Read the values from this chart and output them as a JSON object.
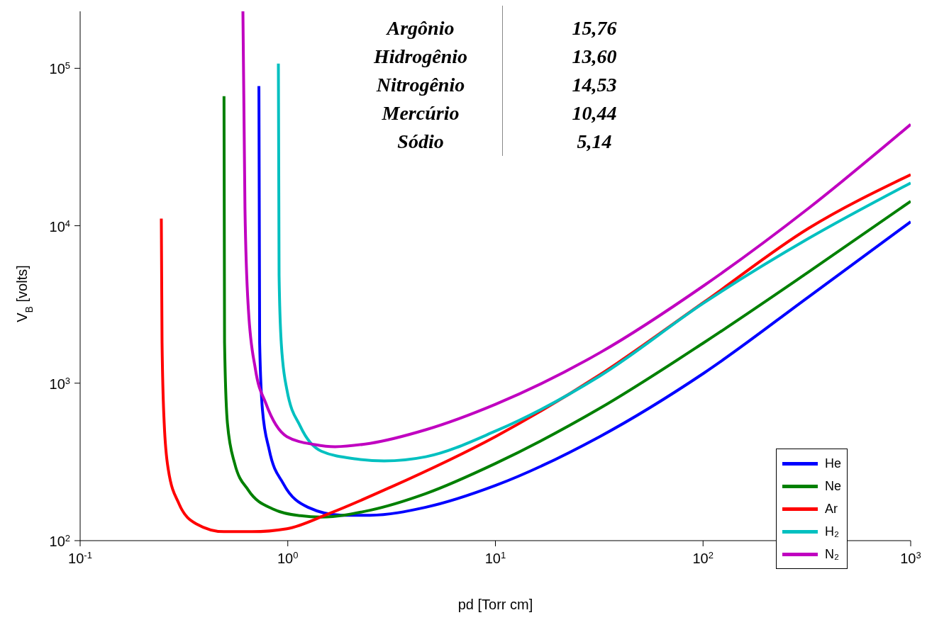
{
  "chart_data": {
    "type": "line",
    "xlabel": "pd [Torr cm]",
    "ylabel": "V$_{B}$ [volts]",
    "log": "xy",
    "xlim": [
      0.1,
      1000
    ],
    "xticks": [
      {
        "value": 0.1,
        "label": "10$^{-1}$"
      },
      {
        "value": 1,
        "label": "10$^{0}$"
      },
      {
        "value": 10,
        "label": "10$^{1}$"
      },
      {
        "value": 100,
        "label": "10$^{2}$"
      },
      {
        "value": 1000,
        "label": "10$^{3}$"
      }
    ],
    "ylim": [
      100,
      230000
    ],
    "yticks": [
      {
        "value": 100,
        "label": "10$^{2}$"
      },
      {
        "value": 1000,
        "label": "10$^{3}$"
      },
      {
        "value": 10000,
        "label": "10$^{4}$"
      },
      {
        "value": 100000,
        "label": "10$^{5}$"
      }
    ],
    "legend": "bottom right",
    "marker": "none",
    "line_style": "solid",
    "annotations": [
      "Argônio",
      "15,76",
      "Hidrogênio",
      "13,60",
      "Nitrogênio",
      "14,53",
      "Mercúrio",
      "10,44",
      "Sódio",
      "5,14"
    ],
    "series": [
      {
        "name": "He",
        "color": "#0000ff",
        "x": [
          0.726,
          0.732,
          0.755,
          0.814,
          0.952,
          1.25,
          1.83,
          2.49,
          4.62,
          10,
          31.8,
          101,
          322,
          1000
        ],
        "values": [
          77100,
          1810,
          679,
          377,
          230,
          163,
          145,
          145,
          163,
          224,
          458,
          1160,
          3530,
          10600
        ]
      },
      {
        "name": "Ne",
        "color": "#008000",
        "x": [
          0.493,
          0.496,
          0.512,
          0.555,
          0.646,
          0.846,
          1.15,
          1.45,
          2.49,
          4.62,
          10,
          31.8,
          101,
          322,
          1000
        ],
        "values": [
          66500,
          1810,
          557,
          309,
          209,
          159,
          144,
          141,
          156,
          199,
          309,
          692,
          1810,
          5080,
          14300
        ]
      },
      {
        "name": "Ar",
        "color": "#ff0000",
        "x": [
          0.246,
          0.248,
          0.254,
          0.266,
          0.299,
          0.362,
          0.493,
          0.672,
          0.99,
          1.57,
          3.14,
          10,
          31.8,
          101,
          322,
          1000
        ],
        "values": [
          11100,
          1810,
          557,
          281,
          172,
          128,
          114,
          114,
          119,
          148,
          219,
          458,
          1130,
          3270,
          9620,
          21100
        ]
      },
      {
        "name": "H₂",
        "color": "#00c0c0",
        "x": [
          0.901,
          0.908,
          0.93,
          0.99,
          1.15,
          1.45,
          2.14,
          2.91,
          4.62,
          10,
          31.8,
          101,
          322,
          1000
        ],
        "values": [
          107000,
          4830,
          1810,
          910,
          531,
          370,
          330,
          321,
          341,
          496,
          1110,
          3240,
          8300,
          18700
        ]
      },
      {
        "name": "N₂",
        "color": "#c000c0",
        "x": [
          0.608,
          0.622,
          0.646,
          0.699,
          0.783,
          0.99,
          1.35,
          1.69,
          2.49,
          4.62,
          10,
          31.8,
          101,
          322,
          1000
        ],
        "values": [
          230000,
          12900,
          2960,
          1220,
          748,
          458,
          407,
          395,
          415,
          506,
          734,
          1560,
          4170,
          12900,
          44000
        ]
      }
    ]
  }
}
